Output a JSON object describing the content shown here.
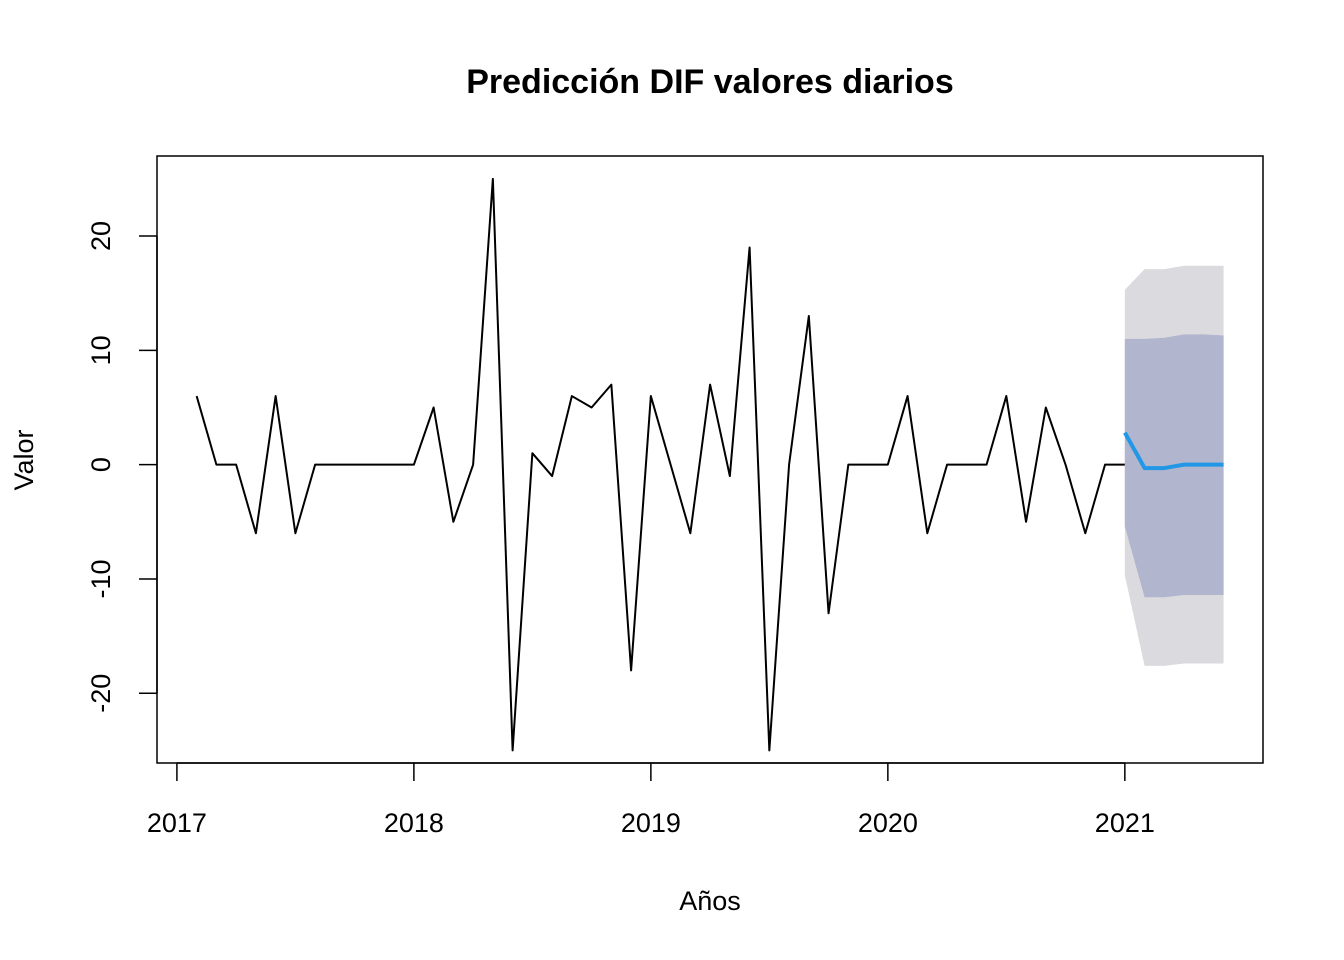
{
  "chart_data": {
    "type": "line",
    "title": "Predicción DIF valores diarios",
    "xlabel": "Años",
    "ylabel": "Valor",
    "xlim": [
      2016.916,
      2021.583
    ],
    "ylim": [
      -26.1,
      27.0
    ],
    "x_ticks": [
      2017,
      2018,
      2019,
      2020,
      2021
    ],
    "x_tick_labels": [
      "2017",
      "2018",
      "2019",
      "2020",
      "2021"
    ],
    "y_ticks": [
      -20,
      -10,
      0,
      10,
      20
    ],
    "y_tick_labels": [
      "-20",
      "-10",
      "0",
      "10",
      "20"
    ],
    "colors": {
      "series": "#000000",
      "forecast": "#2297E6",
      "band80": "#B1B5CE",
      "band95": "#DBDBDF"
    },
    "series": [
      {
        "name": "observed",
        "x_start": 2017.0833,
        "step": 0.08333,
        "values": [
          6,
          0,
          0,
          -6,
          6,
          -6,
          0,
          0,
          0,
          0,
          0,
          0,
          5,
          -5,
          0,
          25,
          -25,
          1,
          -1,
          6,
          5,
          7,
          -18,
          6,
          0,
          -6,
          7,
          -1,
          19,
          -25,
          0,
          13,
          -13,
          0,
          0,
          0,
          6,
          -6,
          0,
          0,
          0,
          6,
          -5,
          5,
          0,
          -6,
          0,
          0
        ]
      },
      {
        "name": "forecast",
        "x": [
          2021.0,
          2021.0833,
          2021.1667,
          2021.25,
          2021.3333,
          2021.4167
        ],
        "values": [
          2.8,
          -0.3,
          -0.3,
          0.0,
          0.0,
          0.0
        ],
        "lo80": [
          -5.4,
          -11.6,
          -11.6,
          -11.4,
          -11.4,
          -11.4
        ],
        "hi80": [
          11.0,
          11.0,
          11.1,
          11.4,
          11.4,
          11.3
        ],
        "lo95": [
          -9.7,
          -17.6,
          -17.6,
          -17.4,
          -17.4,
          -17.4
        ],
        "hi95": [
          15.3,
          17.1,
          17.1,
          17.4,
          17.4,
          17.4
        ]
      }
    ]
  }
}
